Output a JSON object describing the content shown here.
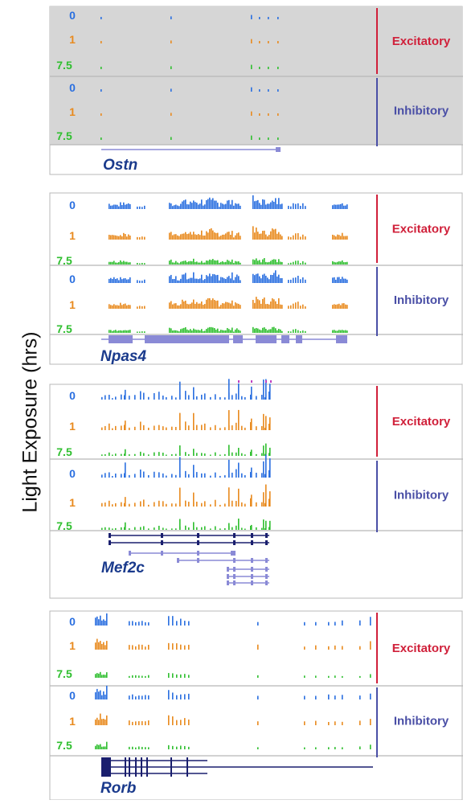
{
  "y_axis_label": "Light Exposure (hrs)",
  "colors": {
    "t0": "#2a6fe0",
    "t1": "#e88a1e",
    "t75": "#2fbf2f",
    "gene_model": "#8a8ad6",
    "gene_model_dark": "#1a1f6e",
    "panel_gray": "#d6d6d6",
    "excitatory": "#d0203a",
    "inhibitory": "#4a4fa6",
    "gene_name": "#1a3a8c",
    "magenta_flag": "#c040c0"
  },
  "track_labels": [
    "0",
    "1",
    "7.5"
  ],
  "cell_types": {
    "excitatory": "Excitatory",
    "inhibitory": "Inhibitory"
  },
  "panels": [
    {
      "gene": "Ostn",
      "shaded": true
    },
    {
      "gene": "Npas4",
      "shaded": false
    },
    {
      "gene": "Mef2c",
      "shaded": false
    },
    {
      "gene": "Rorb",
      "shaded": false
    }
  ]
}
